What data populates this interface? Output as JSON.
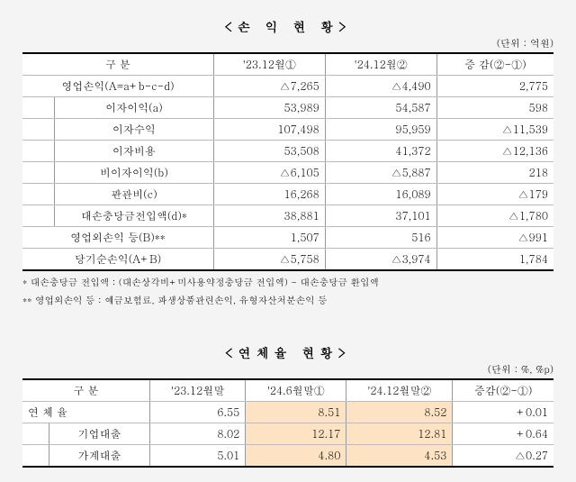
{
  "table1": {
    "title": "<손 익 현 황>",
    "unit": "(단위 : 억원)",
    "headers": [
      "구   분",
      "'23.12월①",
      "'24.12월②",
      "증 감(②-①)"
    ],
    "rows": [
      {
        "label": "영업손익(A=a+b-c-d)",
        "c1s": "",
        "c1": "",
        "v1": "△7,265",
        "v2": "△4,490",
        "v3": "2,775",
        "cls": ""
      },
      {
        "label": "이자이익(a)",
        "c1s": "stub",
        "c1": "",
        "v1": "53,989",
        "v2": "54,587",
        "v3": "598",
        "cls": "indent1"
      },
      {
        "label": "이자수익",
        "c1s": "stub",
        "c1": "",
        "v1": "107,498",
        "v2": "95,959",
        "v3": "△11,539",
        "cls": "indent2"
      },
      {
        "label": "이자비용",
        "c1s": "stub",
        "c1": "",
        "v1": "53,508",
        "v2": "41,372",
        "v3": "△12,136",
        "cls": "indent2"
      },
      {
        "label": "비이자이익(b)",
        "c1s": "stub",
        "c1": "",
        "v1": "△6,105",
        "v2": "△5,887",
        "v3": "218",
        "cls": "indent1"
      },
      {
        "label": "판관비(c)",
        "c1s": "stub",
        "c1": "",
        "v1": "16,268",
        "v2": "16,089",
        "v3": "△179",
        "cls": "indent1"
      },
      {
        "label": "대손충당금전입액(d)*",
        "c1s": "stub",
        "c1": "",
        "v1": "38,881",
        "v2": "37,101",
        "v3": "△1,780",
        "cls": "indent1"
      },
      {
        "label": "영업외손익 등(B)**",
        "c1s": "",
        "c1": "",
        "v1": "1,507",
        "v2": "516",
        "v3": "△991",
        "cls": ""
      },
      {
        "label": "당기순손익(A+B)",
        "c1s": "",
        "c1": "",
        "v1": "△5,758",
        "v2": "△3,974",
        "v3": "1,784",
        "cls": "",
        "last": true
      }
    ],
    "footnote1": "* 대손충당금 전입액 : (대손상각비+미사용약정충당금 전입액) - 대손충당금 환입액",
    "footnote2": "** 영업외손익 등 : 예금보험료, 파생상품관련손익, 유형자산처분손익 등"
  },
  "table2": {
    "title": "<연체율 현황>",
    "unit": "(단위 : %, %p)",
    "headers": [
      "구   분",
      "'23.12월말",
      "'24.6월말①",
      "'24.12월말②",
      "증감(②-①)"
    ],
    "rows": [
      {
        "label": "연 체 율",
        "stub": "",
        "v1": "6.55",
        "v2": "8.51",
        "v3": "8.52",
        "v4": "+0.01",
        "hl": true
      },
      {
        "label": "기업대출",
        "stub": "stub",
        "v1": "8.02",
        "v2": "12.17",
        "v3": "12.81",
        "v4": "+0.64",
        "hl": true
      },
      {
        "label": "가계대출",
        "stub": "stub",
        "v1": "5.01",
        "v2": "4.80",
        "v3": "4.53",
        "v4": "△0.27",
        "hl": true,
        "last": true
      }
    ]
  }
}
